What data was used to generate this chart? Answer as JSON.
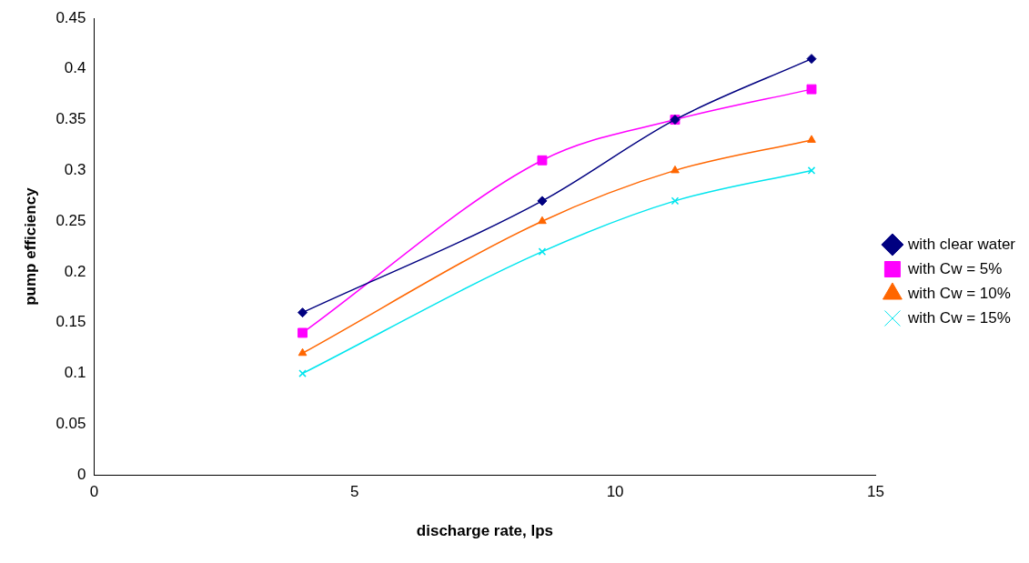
{
  "chart_data": {
    "type": "line",
    "xlabel": "discharge rate, lps",
    "ylabel": "pump efficiency",
    "x": [
      4,
      8.6,
      11.15,
      13.77
    ],
    "series": [
      {
        "name": "with clear water",
        "color": "#000080",
        "marker": "diamond",
        "values": [
          0.16,
          0.27,
          0.35,
          0.41
        ]
      },
      {
        "name": "with Cw = 5%",
        "color": "#ff00ff",
        "marker": "square",
        "values": [
          0.14,
          0.31,
          0.35,
          0.38
        ]
      },
      {
        "name": "with Cw = 10%",
        "color": "#ff6600",
        "marker": "triangle",
        "values": [
          0.12,
          0.25,
          0.3,
          0.33
        ]
      },
      {
        "name": "with Cw = 15%",
        "color": "#00e5ee",
        "marker": "cross",
        "values": [
          0.1,
          0.22,
          0.27,
          0.3
        ]
      }
    ],
    "xlim": [
      0,
      15
    ],
    "xticks": [
      0,
      5,
      10,
      15
    ],
    "ylim": [
      0,
      0.45
    ],
    "yticks": [
      0,
      0.05,
      0.1,
      0.15,
      0.2,
      0.25,
      0.3,
      0.35,
      0.4,
      0.45
    ],
    "grid": false,
    "legend": "right",
    "line_style": "solid"
  }
}
